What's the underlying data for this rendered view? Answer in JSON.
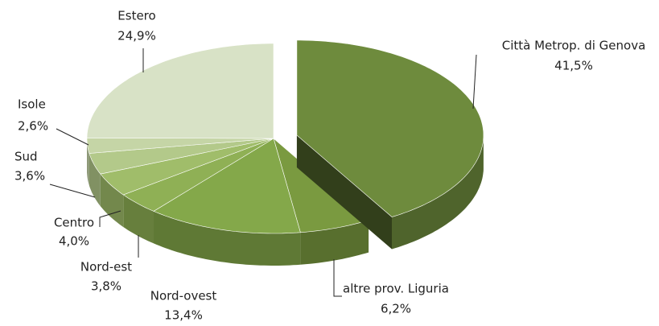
{
  "chart_data": {
    "type": "pie",
    "categories": [
      "Città Metrop. di Genova",
      "altre prov. Liguria",
      "Nord-ovest",
      "Nord-est",
      "Centro",
      "Sud",
      "Isole",
      "Estero"
    ],
    "values": [
      41.5,
      6.2,
      13.4,
      3.8,
      4.0,
      3.6,
      2.6,
      24.9
    ],
    "value_labels": [
      "41,5%",
      "6,2%",
      "13,4%",
      "3,8%",
      "4,0%",
      "3,6%",
      "2,6%",
      "24,9%"
    ],
    "colors": [
      "#6e8b3d",
      "#7a9a40",
      "#84a84a",
      "#8fb055",
      "#a0bd6a",
      "#b3c98a",
      "#c5d5a6",
      "#d8e2c6"
    ]
  }
}
